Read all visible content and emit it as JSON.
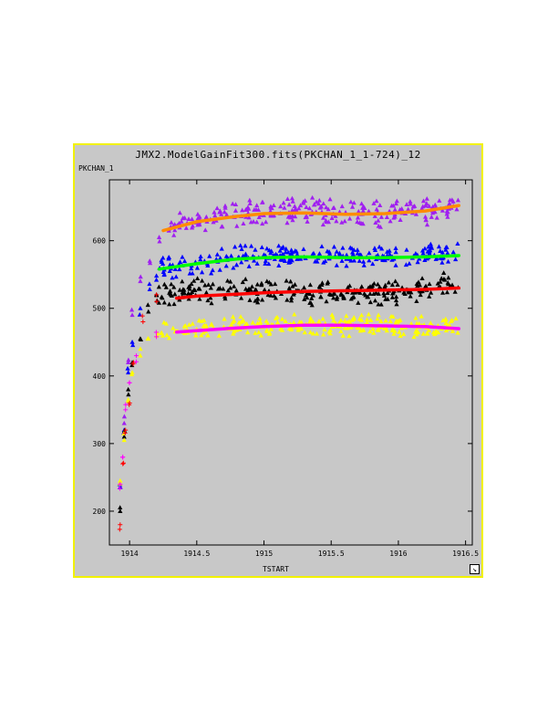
{
  "window": {
    "title": "JMX2.ModelGainFit300.fits(PKCHAN_1_1-724)_12",
    "ylabel": "PKCHAN_1",
    "xlabel": "TSTART",
    "resize_icon": "resize-corner-icon"
  },
  "colors": {
    "frame_border": "#f2f200",
    "background": "#c8c8c8"
  },
  "chart_data": {
    "type": "scatter",
    "title": "JMX2.ModelGainFit300.fits(PKCHAN_1_1-724)_12",
    "xlabel": "TSTART",
    "ylabel": "PKCHAN_1",
    "xlim": [
      1913.85,
      1916.55
    ],
    "ylim": [
      150,
      690
    ],
    "xticks": [
      1914,
      1914.5,
      1915,
      1915.5,
      1916,
      1916.5
    ],
    "xtick_labels": [
      "1914",
      "1914.5",
      "1915",
      "1915.5",
      "1916",
      "1916.5"
    ],
    "yticks": [
      200,
      300,
      400,
      500,
      600
    ],
    "ytick_labels": [
      "200",
      "300",
      "400",
      "500",
      "600"
    ],
    "grid": false,
    "legend": "none",
    "series": [
      {
        "marker": "triangle",
        "color": "#a020f0",
        "band": {
          "x_start": 1914.28,
          "x_end": 1916.45,
          "spread": 22
        },
        "ramp": [
          [
            1913.93,
            240
          ],
          [
            1913.96,
            330
          ],
          [
            1913.99,
            420
          ],
          [
            1914.02,
            490
          ],
          [
            1914.08,
            540
          ],
          [
            1914.15,
            570
          ],
          [
            1914.22,
            605
          ]
        ],
        "points": [
          [
            1914.3,
            620
          ],
          [
            1914.5,
            630
          ],
          [
            1914.8,
            640
          ],
          [
            1915.0,
            645
          ],
          [
            1915.3,
            645
          ],
          [
            1915.6,
            640
          ],
          [
            1915.9,
            642
          ],
          [
            1916.2,
            645
          ],
          [
            1916.45,
            650
          ]
        ]
      },
      {
        "marker": "triangle",
        "color": "#0000ff",
        "band": {
          "x_start": 1914.22,
          "x_end": 1916.45,
          "spread": 18
        },
        "ramp": [
          [
            1913.93,
            235
          ],
          [
            1913.96,
            320
          ],
          [
            1913.99,
            405
          ],
          [
            1914.02,
            450
          ],
          [
            1914.08,
            500
          ],
          [
            1914.15,
            528
          ],
          [
            1914.2,
            548
          ]
        ],
        "points": [
          [
            1914.25,
            560
          ],
          [
            1914.5,
            565
          ],
          [
            1914.8,
            575
          ],
          [
            1915.0,
            578
          ],
          [
            1915.3,
            580
          ],
          [
            1915.6,
            576
          ],
          [
            1915.9,
            578
          ],
          [
            1916.2,
            580
          ],
          [
            1916.45,
            582
          ]
        ]
      },
      {
        "marker": "triangle",
        "color": "#000000",
        "band": {
          "x_start": 1914.2,
          "x_end": 1916.45,
          "spread": 20
        },
        "ramp": [
          [
            1913.93,
            200
          ],
          [
            1913.96,
            310
          ],
          [
            1913.99,
            380
          ],
          [
            1914.02,
            420
          ],
          [
            1914.08,
            455
          ],
          [
            1914.14,
            495
          ],
          [
            1914.2,
            520
          ]
        ],
        "points": [
          [
            1914.25,
            520
          ],
          [
            1914.5,
            525
          ],
          [
            1914.8,
            528
          ],
          [
            1915.0,
            525
          ],
          [
            1915.3,
            524
          ],
          [
            1915.6,
            520
          ],
          [
            1915.9,
            522
          ],
          [
            1916.2,
            530
          ],
          [
            1916.45,
            540
          ]
        ]
      },
      {
        "marker": "triangle",
        "color": "#ffff00",
        "band": {
          "x_start": 1914.2,
          "x_end": 1916.45,
          "spread": 18
        },
        "ramp": [
          [
            1913.93,
            245
          ],
          [
            1913.96,
            305
          ],
          [
            1913.99,
            365
          ],
          [
            1914.02,
            405
          ],
          [
            1914.08,
            430
          ],
          [
            1914.14,
            455
          ]
        ],
        "points": [
          [
            1914.25,
            465
          ],
          [
            1914.5,
            468
          ],
          [
            1914.8,
            472
          ],
          [
            1915.0,
            474
          ],
          [
            1915.3,
            476
          ],
          [
            1915.6,
            475
          ],
          [
            1915.9,
            474
          ],
          [
            1916.2,
            472
          ],
          [
            1916.45,
            474
          ]
        ]
      },
      {
        "marker": "cross",
        "color": "#ff0000",
        "band": {
          "x_start": 1913.93,
          "x_end": 1914.25,
          "spread": 10
        },
        "ramp": [
          [
            1913.93,
            180
          ],
          [
            1913.95,
            270
          ],
          [
            1913.97,
            320
          ],
          [
            1914.0,
            360
          ],
          [
            1914.03,
            420
          ],
          [
            1914.1,
            480
          ],
          [
            1914.2,
            520
          ]
        ],
        "points": []
      },
      {
        "marker": "cross",
        "color": "#ff00ff",
        "band": {
          "x_start": 1913.93,
          "x_end": 1914.25,
          "spread": 10
        },
        "ramp": [
          [
            1913.93,
            240
          ],
          [
            1913.95,
            280
          ],
          [
            1913.97,
            350
          ],
          [
            1914.0,
            390
          ],
          [
            1914.05,
            430
          ],
          [
            1914.2,
            458
          ]
        ],
        "points": []
      }
    ],
    "fits": [
      {
        "name": "fit-orange",
        "color": "#ff8c00",
        "x": [
          1914.25,
          1914.5,
          1914.8,
          1915.0,
          1915.3,
          1915.6,
          1915.9,
          1916.2,
          1916.45
        ],
        "y": [
          615,
          628,
          636,
          640,
          641,
          639,
          640,
          644,
          652
        ]
      },
      {
        "name": "fit-green",
        "color": "#00ff00",
        "x": [
          1914.22,
          1914.5,
          1914.8,
          1915.0,
          1915.3,
          1915.6,
          1915.9,
          1916.2,
          1916.45
        ],
        "y": [
          558,
          566,
          573,
          575,
          576,
          575,
          575,
          576,
          578
        ]
      },
      {
        "name": "fit-red",
        "color": "#ff0000",
        "x": [
          1914.35,
          1914.5,
          1914.8,
          1915.0,
          1915.3,
          1915.6,
          1915.9,
          1916.2,
          1916.45
        ],
        "y": [
          515,
          518,
          521,
          523,
          525,
          526,
          527,
          528,
          530
        ]
      },
      {
        "name": "fit-magenta",
        "color": "#ff00ff",
        "x": [
          1914.35,
          1914.5,
          1914.8,
          1915.0,
          1915.3,
          1915.6,
          1915.9,
          1916.2,
          1916.45
        ],
        "y": [
          465,
          467,
          471,
          473,
          475,
          475,
          474,
          473,
          470
        ]
      }
    ]
  }
}
